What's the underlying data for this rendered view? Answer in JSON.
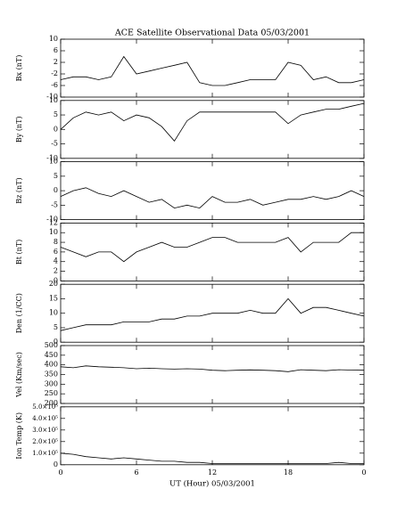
{
  "chart_data": {
    "type": "line",
    "title": "ACE Satellite Observational Data   05/03/2001",
    "xlabel": "UT (Hour)  05/03/2001",
    "x": [
      0,
      1,
      2,
      3,
      4,
      5,
      6,
      7,
      8,
      9,
      10,
      11,
      12,
      13,
      14,
      15,
      16,
      17,
      18,
      19,
      20,
      21,
      22,
      23,
      24
    ],
    "xlim": [
      0,
      24
    ],
    "xticks": [
      0,
      6,
      12,
      18,
      {
        "value": 24,
        "label": "0"
      }
    ],
    "panels": [
      {
        "ylabel": "Bx (nT)",
        "ylim": [
          -10,
          10
        ],
        "yticks": [
          -10,
          -6,
          -2,
          2,
          6,
          10
        ],
        "values": [
          -4,
          -3,
          -3,
          -4,
          -3,
          4,
          -2,
          -1,
          0,
          1,
          2,
          -5,
          -6,
          -6,
          -5,
          -4,
          -4,
          -4,
          2,
          1,
          -4,
          -3,
          -5,
          -5,
          -4
        ]
      },
      {
        "ylabel": "By (nT)",
        "ylim": [
          -10,
          10
        ],
        "yticks": [
          -10,
          -5,
          0,
          5,
          10
        ],
        "values": [
          0,
          4,
          6,
          5,
          6,
          3,
          5,
          4,
          1,
          -4,
          3,
          6,
          6,
          6,
          6,
          6,
          6,
          6,
          2,
          5,
          6,
          7,
          7,
          8,
          9
        ]
      },
      {
        "ylabel": "Bz (nT)",
        "ylim": [
          -10,
          10
        ],
        "yticks": [
          -10,
          -5,
          0,
          5,
          10
        ],
        "values": [
          -2,
          0,
          1,
          -1,
          -2,
          0,
          -2,
          -4,
          -3,
          -6,
          -5,
          -6,
          -2,
          -4,
          -4,
          -3,
          -5,
          -4,
          -3,
          -3,
          -2,
          -3,
          -2,
          0,
          -2
        ]
      },
      {
        "ylabel": "Bt (nT)",
        "ylim": [
          0,
          12
        ],
        "yticks": [
          0,
          2,
          4,
          6,
          8,
          10,
          12
        ],
        "values": [
          7,
          6,
          5,
          6,
          6,
          4,
          6,
          7,
          8,
          7,
          7,
          8,
          9,
          9,
          8,
          8,
          8,
          8,
          9,
          6,
          8,
          8,
          8,
          10,
          10
        ]
      },
      {
        "ylabel": "Den (1/CC)",
        "ylim": [
          0,
          20
        ],
        "yticks": [
          0,
          5,
          10,
          15,
          20
        ],
        "values": [
          4,
          5,
          6,
          6,
          6,
          7,
          7,
          7,
          8,
          8,
          9,
          9,
          10,
          10,
          10,
          11,
          10,
          10,
          15,
          10,
          12,
          12,
          11,
          10,
          9
        ]
      },
      {
        "ylabel": "Vel (Km/sec)",
        "ylim": [
          200,
          500
        ],
        "yticks": [
          200,
          250,
          300,
          350,
          400,
          450,
          500
        ],
        "values": [
          390,
          385,
          395,
          390,
          388,
          385,
          380,
          383,
          380,
          378,
          380,
          378,
          372,
          370,
          372,
          374,
          372,
          370,
          365,
          375,
          372,
          370,
          375,
          373,
          372
        ]
      },
      {
        "ylabel": "Ion Temp (K)",
        "ylim": [
          0,
          500000
        ],
        "yticks": [
          0,
          {
            "value": 100000,
            "label": "1.0×10⁵"
          },
          {
            "value": 200000,
            "label": "2.0×10⁵"
          },
          {
            "value": 300000,
            "label": "3.0×10⁵"
          },
          {
            "value": 400000,
            "label": "4.0×10⁵"
          },
          {
            "value": 500000,
            "label": "5.0×10⁵"
          }
        ],
        "values": [
          100000,
          90000,
          70000,
          60000,
          50000,
          60000,
          50000,
          40000,
          30000,
          30000,
          20000,
          20000,
          10000,
          10000,
          10000,
          10000,
          10000,
          10000,
          10000,
          10000,
          10000,
          10000,
          20000,
          10000,
          10000
        ]
      }
    ]
  }
}
